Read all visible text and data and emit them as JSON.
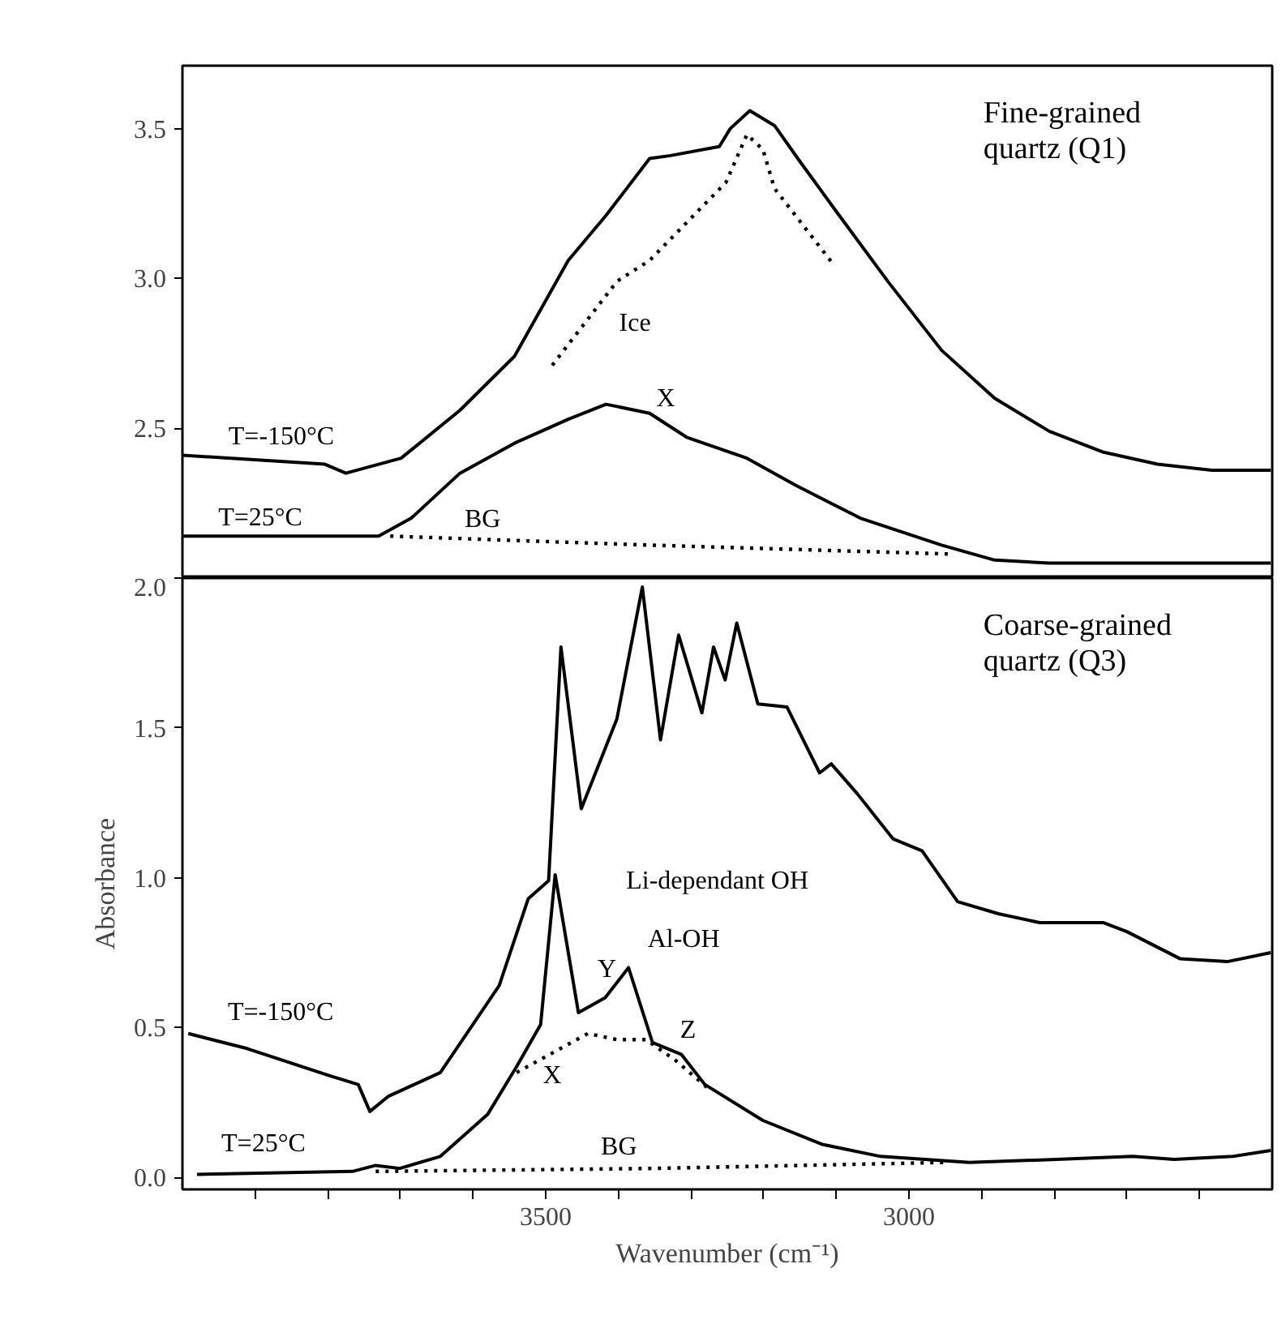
{
  "chart_data": [
    {
      "type": "line",
      "title": "Fine-grained quartz (Q1)",
      "xlim": [
        4000,
        2500
      ],
      "ylim": [
        2.0,
        3.71
      ],
      "yticks": [
        2.5,
        {
          "value": 3.0,
          "label": "3.0"
        },
        3.5
      ],
      "tick_labels": "y",
      "line_style": "solid",
      "series": [
        {
          "name": "T=-150°C",
          "color": "#000000",
          "x": [
            4000,
            3804,
            3775,
            3699,
            3618,
            3543,
            3469,
            3417,
            3357,
            3328,
            3261,
            3246,
            3219,
            3185,
            3150,
            3105,
            3029,
            2955,
            2882,
            2807,
            2732,
            2658,
            2583,
            2502
          ],
          "values": [
            2.41,
            2.38,
            2.35,
            2.4,
            2.56,
            2.74,
            3.06,
            3.21,
            3.4,
            3.41,
            3.44,
            3.5,
            3.56,
            3.51,
            3.39,
            3.24,
            2.99,
            2.76,
            2.6,
            2.49,
            2.42,
            2.38,
            2.36,
            2.36
          ]
        },
        {
          "name": "T=25°C",
          "color": "#000000",
          "x": [
            4000,
            3730,
            3685,
            3618,
            3543,
            3469,
            3417,
            3357,
            3306,
            3223,
            3156,
            3067,
            2955,
            2882,
            2807,
            2658,
            2502
          ],
          "values": [
            2.14,
            2.14,
            2.2,
            2.35,
            2.45,
            2.53,
            2.58,
            2.55,
            2.47,
            2.4,
            2.31,
            2.2,
            2.11,
            2.06,
            2.05,
            2.05,
            2.05
          ]
        },
        {
          "name": "BG",
          "color": "#000000",
          "line_style": "dotted",
          "x": [
            3714,
            3357,
            2940
          ],
          "values": [
            2.14,
            2.11,
            2.08
          ]
        },
        {
          "name": "Ice",
          "color": "#000000",
          "line_style": "dotted",
          "x": [
            3491,
            3402,
            3357,
            3252,
            3223,
            3201,
            3185,
            3105
          ],
          "values": [
            2.71,
            2.99,
            3.06,
            3.32,
            3.48,
            3.43,
            3.3,
            3.05
          ]
        }
      ],
      "annotations": [
        {
          "text": "X",
          "x": 3357,
          "y": 2.55
        }
      ]
    },
    {
      "type": "line",
      "title": "Coarse-grained quartz (Q3)",
      "xlabel": "Wavenumber (cm⁻¹)",
      "ylabel": "Absorbance",
      "xlim": [
        4000,
        2500
      ],
      "ylim": [
        -0.04,
        2.0
      ],
      "line_style": "solid",
      "xticks": [
        {
          "value": 3900,
          "label": null
        },
        {
          "value": 3800,
          "label": null
        },
        {
          "value": 3700,
          "label": null
        },
        {
          "value": 3600,
          "label": null
        },
        3500,
        {
          "value": 3400,
          "label": null
        },
        {
          "value": 3300,
          "label": null
        },
        {
          "value": 3200,
          "label": null
        },
        {
          "value": 3100,
          "label": null
        },
        3000,
        {
          "value": 2900,
          "label": null
        },
        {
          "value": 2800,
          "label": null
        },
        {
          "value": 2700,
          "label": null
        },
        {
          "value": 2600,
          "label": null
        }
      ],
      "yticks": [
        {
          "value": 0,
          "label": "0.0"
        },
        0.5,
        {
          "value": 1,
          "label": "1.0"
        },
        1.5,
        {
          "value": 2,
          "label": "2.0"
        }
      ],
      "series": [
        {
          "name": "T=-150°C",
          "color": "#000000",
          "x": [
            3992,
            3911,
            3798,
            3758,
            3742,
            3717,
            3645,
            3564,
            3524,
            3496,
            3479,
            3451,
            3402,
            3367,
            3342,
            3317,
            3285,
            3269,
            3253,
            3237,
            3208,
            3168,
            3123,
            3107,
            3071,
            3022,
            2982,
            2933,
            2877,
            2820,
            2732,
            2700,
            2627,
            2562,
            2502
          ],
          "values": [
            0.48,
            0.43,
            0.34,
            0.31,
            0.22,
            0.27,
            0.35,
            0.64,
            0.93,
            0.99,
            1.77,
            1.23,
            1.53,
            1.97,
            1.46,
            1.81,
            1.55,
            1.77,
            1.66,
            1.85,
            1.58,
            1.57,
            1.35,
            1.38,
            1.28,
            1.13,
            1.09,
            0.92,
            0.88,
            0.85,
            0.85,
            0.82,
            0.73,
            0.72,
            0.75
          ]
        },
        {
          "name": "T=25°C",
          "color": "#000000",
          "x": [
            3980,
            3766,
            3734,
            3701,
            3645,
            3580,
            3540,
            3507,
            3487,
            3455,
            3418,
            3386,
            3353,
            3313,
            3281,
            3201,
            3119,
            3039,
            2917,
            2797,
            2692,
            2635,
            2554,
            2502
          ],
          "values": [
            0.01,
            0.02,
            0.04,
            0.03,
            0.07,
            0.21,
            0.37,
            0.51,
            1.01,
            0.55,
            0.6,
            0.7,
            0.45,
            0.41,
            0.31,
            0.19,
            0.11,
            0.07,
            0.05,
            0.06,
            0.07,
            0.06,
            0.07,
            0.09
          ]
        },
        {
          "name": "BG",
          "color": "#000000",
          "line_style": "dotted",
          "x": [
            3734,
            3350,
            2950
          ],
          "values": [
            0.02,
            0.03,
            0.05
          ]
        },
        {
          "name": "X",
          "color": "#000000",
          "line_style": "dotted",
          "x": [
            3540,
            3442,
            3402,
            3362,
            3321,
            3273
          ],
          "values": [
            0.35,
            0.48,
            0.46,
            0.46,
            0.39,
            0.29
          ]
        }
      ],
      "annotations": [
        {
          "text": "Li-dependant OH",
          "x": 3487,
          "y": 1.01
        },
        {
          "text": "Y",
          "x": 3418,
          "y": 0.6
        },
        {
          "text": "Al-OH",
          "x": 3386,
          "y": 0.7
        },
        {
          "text": "Z",
          "x": 3313,
          "y": 0.41
        }
      ]
    }
  ]
}
